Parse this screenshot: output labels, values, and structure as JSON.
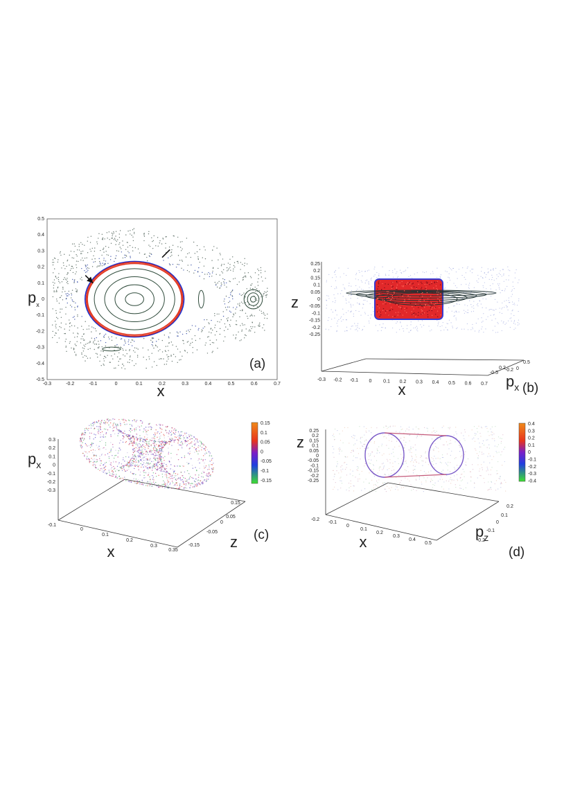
{
  "chart_data": [
    {
      "id": "a",
      "type": "scatter",
      "panel_label": "(a)",
      "xlabel": "x",
      "ylabel": "p",
      "ylabel_sub": "x",
      "xlim": [
        -0.3,
        0.7
      ],
      "ylim": [
        -0.5,
        0.5
      ],
      "xticks": [
        "-0.3",
        "-0.2",
        "-0.1",
        "0",
        "0.1",
        "0.2",
        "0.3",
        "0.4",
        "0.5",
        "0.6",
        "0.7"
      ],
      "yticks": [
        "0.5",
        "0.4",
        "0.3",
        "0.2",
        "0.1",
        "0",
        "-0.1",
        "-0.2",
        "-0.3",
        "-0.4",
        "-0.5"
      ],
      "invariant_curves": [
        {
          "cx": 0.08,
          "cy": 0.0,
          "rx": 0.04,
          "ry": 0.04,
          "color": "#2e4a3a"
        },
        {
          "cx": 0.08,
          "cy": 0.0,
          "rx": 0.085,
          "ry": 0.09,
          "color": "#2e4a3a"
        },
        {
          "cx": 0.08,
          "cy": 0.0,
          "rx": 0.13,
          "ry": 0.14,
          "color": "#2e4a3a"
        },
        {
          "cx": 0.08,
          "cy": 0.0,
          "rx": 0.175,
          "ry": 0.19,
          "color": "#2e4a3a"
        },
        {
          "cx": 0.08,
          "cy": 0.0,
          "rx": 0.215,
          "ry": 0.235,
          "color": "#1a2fd0"
        },
        {
          "cx": 0.08,
          "cy": 0.0,
          "rx": 0.21,
          "ry": 0.23,
          "color": "#e0301a"
        },
        {
          "cx": 0.08,
          "cy": 0.0,
          "rx": 0.205,
          "ry": 0.222,
          "color": "#e0301a"
        },
        {
          "cx": 0.596,
          "cy": 0.0,
          "rx": 0.012,
          "ry": 0.018,
          "color": "#2e4a3a"
        },
        {
          "cx": 0.596,
          "cy": 0.0,
          "rx": 0.025,
          "ry": 0.04,
          "color": "#2e4a3a"
        },
        {
          "cx": 0.596,
          "cy": 0.0,
          "rx": 0.04,
          "ry": 0.06,
          "color": "#2e4a3a"
        },
        {
          "cx": 0.37,
          "cy": 0.0,
          "rx": 0.012,
          "ry": 0.055,
          "color": "#2e4a3a"
        },
        {
          "cx": -0.02,
          "cy": -0.31,
          "rx": 0.04,
          "ry": 0.012,
          "color": "#2e4a3a"
        }
      ],
      "arrows": [
        {
          "tip": [
            0.2,
            0.26
          ]
        },
        {
          "tip": [
            -0.1,
            0.1
          ]
        }
      ]
    },
    {
      "id": "b",
      "type": "scatter",
      "panel_label": "(b)",
      "xlabel": "x",
      "ylabel": "z",
      "depth_label": "p",
      "depth_label_sub": "x",
      "xlim": [
        -0.3,
        0.7
      ],
      "zlim": [
        -0.25,
        0.25
      ],
      "xticks": [
        "-0.3",
        "-0.2",
        "-0.1",
        "0",
        "0.1",
        "0.2",
        "0.3",
        "0.4",
        "0.5",
        "0.6",
        "0.7"
      ],
      "zticks": [
        "0.25",
        "0.2",
        "0.15",
        "0.1",
        "0.05",
        "0",
        "-0.05",
        "-0.1",
        "-0.15",
        "-0.2",
        "-0.25"
      ],
      "depth_ticks": [
        "0.5",
        "0",
        "-0.2",
        "0.2",
        "-0.5"
      ]
    },
    {
      "id": "c",
      "type": "scatter",
      "panel_label": "(c)",
      "xlabel": "x",
      "ylabel": "p",
      "ylabel_sub": "x",
      "depth_label": "z",
      "xticks": [
        "-0.1",
        "0",
        "0.1",
        "0.2",
        "0.3",
        "0.35"
      ],
      "yticks": [
        "0.3",
        "0.2",
        "0.1",
        "0",
        "-0.1",
        "-0.2",
        "-0.3"
      ],
      "depth_ticks": [
        "0.15",
        "0.05",
        "0",
        "-0.05",
        "-0.15"
      ],
      "colorbar": {
        "ticks": [
          "0.15",
          "0.1",
          "0.05",
          "0",
          "-0.05",
          "-0.1",
          "-0.15"
        ],
        "range": [
          -0.15,
          0.15
        ]
      }
    },
    {
      "id": "d",
      "type": "scatter",
      "panel_label": "(d)",
      "xlabel": "x",
      "ylabel": "z",
      "depth_label": "p",
      "depth_label_sub": "z",
      "xticks": [
        "-0.2",
        "-0.1",
        "0",
        "0.1",
        "0.2",
        "0.3",
        "0.4",
        "0.5"
      ],
      "yticks": [
        "0.25",
        "0.2",
        "0.15",
        "0.1",
        "0.05",
        "0",
        "-0.05",
        "-0.1",
        "-0.15",
        "-0.2",
        "-0.25"
      ],
      "depth_ticks": [
        "0.2",
        "0.1",
        "0",
        "-0.1",
        "-0.2"
      ],
      "colorbar": {
        "ticks": [
          "0.4",
          "0.3",
          "0.2",
          "0.1",
          "0",
          "-0.1",
          "-0.2",
          "-0.3",
          "-0.4"
        ],
        "range": [
          -0.4,
          0.4
        ]
      }
    }
  ]
}
